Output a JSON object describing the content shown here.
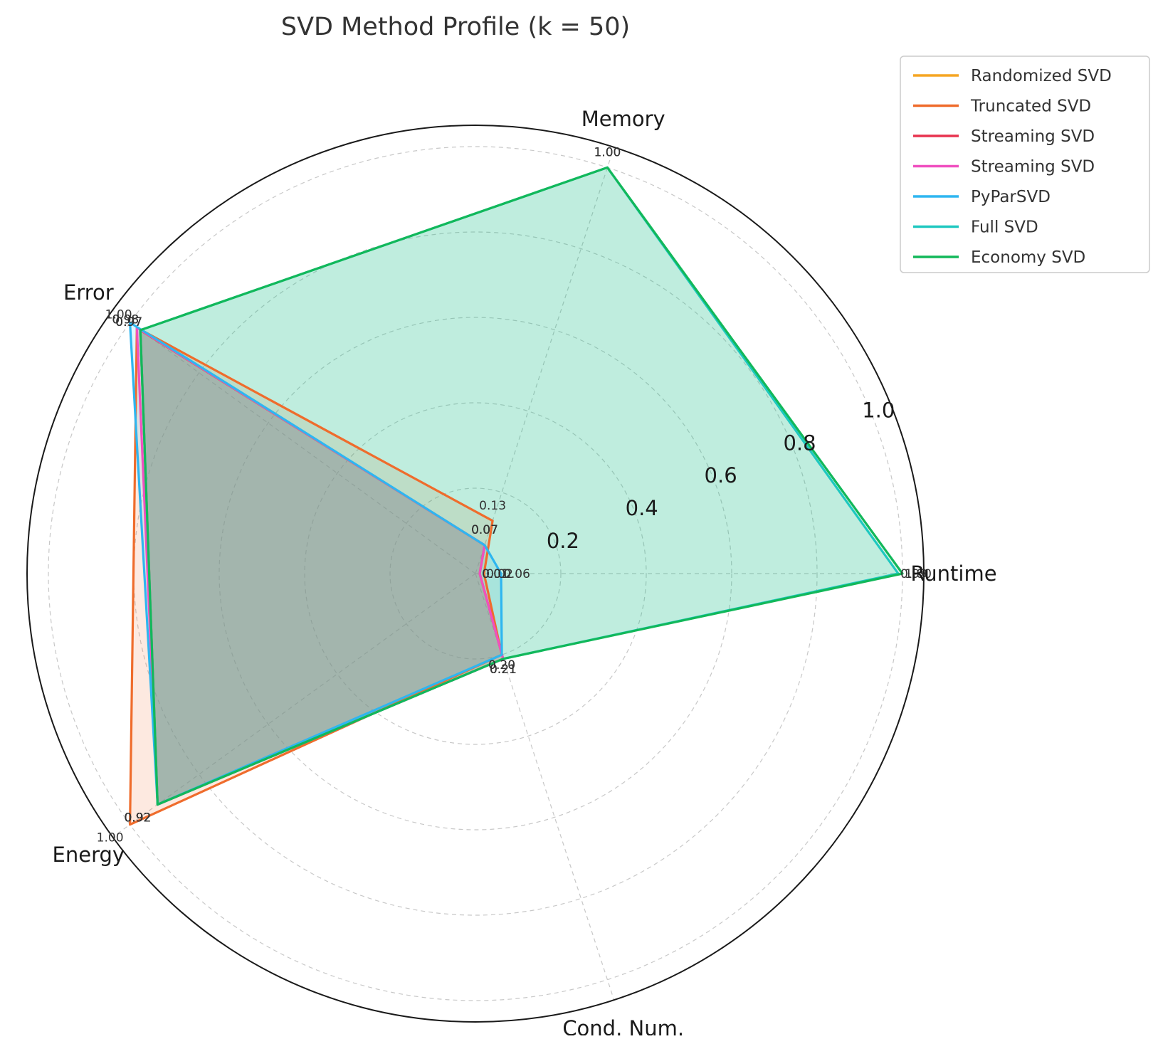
{
  "chart_data": {
    "type": "radar",
    "title": "SVD Method Profile (k = 50)",
    "axes": [
      "Runtime",
      "Memory",
      "Error",
      "Energy",
      "Cond. Num."
    ],
    "rlim": [
      0,
      1.05
    ],
    "rticks": [
      "0.2",
      "0.4",
      "0.6",
      "0.8",
      "1.0"
    ],
    "rtick_values": [
      0.2,
      0.4,
      0.6,
      0.8,
      1.0
    ],
    "grid": true,
    "legend": "upper-right-outside",
    "series": [
      {
        "name": "Randomized SVD",
        "color": "#f5a623",
        "values": [
          0.01,
          0.07,
          0.97,
          0.92,
          0.21
        ],
        "labels": [
          "0.01",
          "0.07",
          "0.97",
          "0.92",
          "0.21"
        ]
      },
      {
        "name": "Truncated SVD",
        "color": "#ef6c2c",
        "values": [
          0.02,
          0.13,
          0.98,
          1.0,
          0.2
        ],
        "labels": [
          "0.02",
          "0.13",
          "0.98",
          "1.00",
          "0.20"
        ]
      },
      {
        "name": "Streaming SVD",
        "color": "#e8334f",
        "values": [
          0.01,
          0.07,
          0.97,
          0.92,
          0.21
        ],
        "labels": [
          "0.01",
          "0.07",
          "0.97",
          "0.92",
          "0.21"
        ]
      },
      {
        "name": "Streaming SVD",
        "color": "#f050c0",
        "values": [
          0.01,
          0.07,
          0.98,
          0.92,
          0.21
        ],
        "labels": [
          "0.01",
          "0.07",
          "0.98",
          "0.92",
          "0.21"
        ]
      },
      {
        "name": "PyParSVD",
        "color": "#2eb6f0",
        "values": [
          0.06,
          0.07,
          1.0,
          0.92,
          0.2
        ],
        "labels": [
          "0.06",
          "0.07",
          "1.00",
          "0.92",
          "0.20"
        ]
      },
      {
        "name": "Full SVD",
        "color": "#1ec8c0",
        "values": [
          0.99,
          1.0,
          0.97,
          0.92,
          0.21
        ],
        "labels": [
          "0.99",
          "1.00",
          "0.97",
          "0.92",
          "0.21"
        ]
      },
      {
        "name": "Economy SVD",
        "color": "#12b85a",
        "values": [
          1.0,
          1.0,
          0.97,
          0.92,
          0.21
        ],
        "labels": [
          "1.00",
          "1.00",
          "0.97",
          "0.92",
          "0.21"
        ]
      }
    ]
  }
}
